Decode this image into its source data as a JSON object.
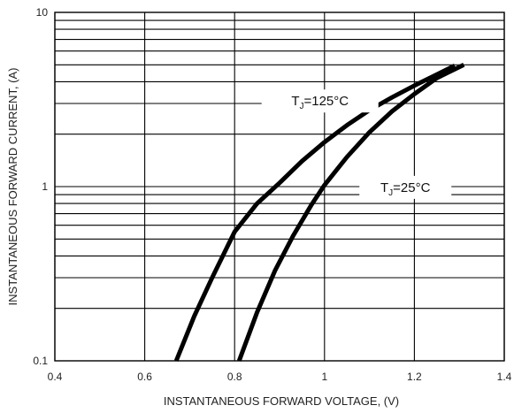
{
  "chart_data": {
    "type": "line",
    "title": "",
    "xlabel": "INSTANTANEOUS FORWARD VOLTAGE, (V)",
    "ylabel": "INSTANTANEOUS FORWARD CURRENT, (A)",
    "xlim": [
      0.4,
      1.4
    ],
    "ylim": [
      0.1,
      10
    ],
    "yscale": "log",
    "grid": true,
    "x_ticks": [
      "0.4",
      "0.6",
      "0.8",
      "1",
      "1.2",
      "1.4"
    ],
    "y_ticks": [
      "0.1",
      "1",
      "10"
    ],
    "series": [
      {
        "name": "TJ=125°C",
        "label_main": "T",
        "label_sub": "J",
        "label_rest": "=125°C",
        "x": [
          0.67,
          0.71,
          0.75,
          0.8,
          0.85,
          0.9,
          0.95,
          1.0,
          1.05,
          1.1,
          1.15,
          1.2,
          1.25,
          1.29
        ],
        "y": [
          0.1,
          0.18,
          0.3,
          0.55,
          0.8,
          1.05,
          1.4,
          1.8,
          2.25,
          2.75,
          3.25,
          3.8,
          4.4,
          4.95
        ]
      },
      {
        "name": "TJ=25°C",
        "label_main": "T",
        "label_sub": "J",
        "label_rest": "=25°C",
        "x": [
          0.81,
          0.85,
          0.89,
          0.93,
          0.97,
          1.0,
          1.05,
          1.1,
          1.15,
          1.2,
          1.25,
          1.31
        ],
        "y": [
          0.1,
          0.19,
          0.33,
          0.52,
          0.78,
          1.02,
          1.48,
          2.05,
          2.7,
          3.4,
          4.2,
          5.0
        ]
      }
    ]
  }
}
